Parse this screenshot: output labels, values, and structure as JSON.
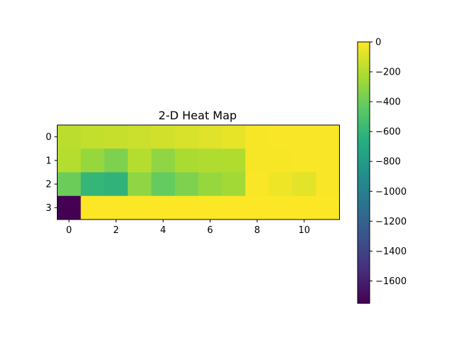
{
  "chart_data": {
    "type": "heatmap",
    "title": "2-D Heat Map",
    "xlabel": "",
    "ylabel": "",
    "x_ticks": [
      0,
      2,
      4,
      6,
      8,
      10
    ],
    "y_ticks": [
      0,
      1,
      2,
      3
    ],
    "x_tick_labels": [
      "0",
      "2",
      "4",
      "6",
      "8",
      "10"
    ],
    "y_tick_labels": [
      "0",
      "1",
      "2",
      "3"
    ],
    "colormap": "viridis",
    "colorbar": {
      "vmin": -1750,
      "vmax": 0,
      "ticks": [
        0,
        -200,
        -400,
        -600,
        -800,
        -1000,
        -1200,
        -1400,
        -1600
      ],
      "tick_labels": [
        "0",
        "−200",
        "−400",
        "−600",
        "−800",
        "−1000",
        "−1200",
        "−1400",
        "−1600"
      ]
    },
    "grid": false,
    "values": [
      [
        -180,
        -160,
        -150,
        -140,
        -120,
        -100,
        -80,
        -60,
        -20,
        -10,
        -10,
        -10
      ],
      [
        -200,
        -280,
        -350,
        -200,
        -300,
        -230,
        -210,
        -210,
        -20,
        -20,
        -10,
        -10
      ],
      [
        -400,
        -600,
        -620,
        -300,
        -420,
        -350,
        -280,
        -250,
        -10,
        -40,
        -70,
        -10
      ],
      [
        -1750,
        -5,
        -5,
        -5,
        -5,
        -5,
        -5,
        -5,
        -5,
        -5,
        -5,
        -5
      ]
    ]
  }
}
